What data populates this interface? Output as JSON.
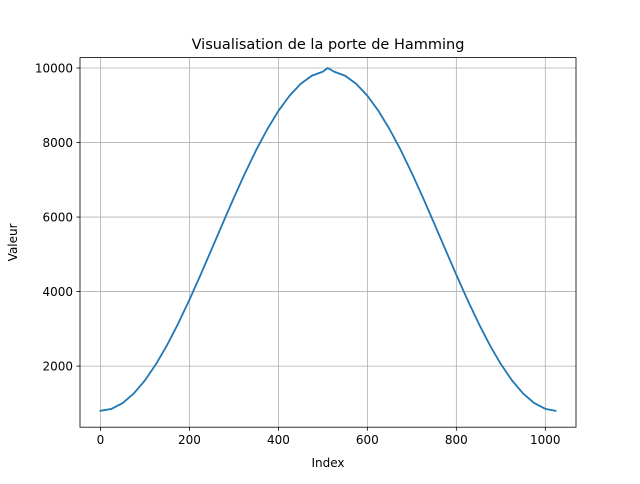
{
  "chart_data": {
    "type": "line",
    "title": "Visualisation de la porte de Hamming",
    "xlabel": "Index",
    "ylabel": "Valeur",
    "xlim": [
      -46,
      1069
    ],
    "ylim": [
      360,
      10280
    ],
    "xticks": [
      0,
      200,
      400,
      600,
      800,
      1000
    ],
    "xtick_labels": [
      "0",
      "200",
      "400",
      "600",
      "800",
      "1000"
    ],
    "yticks": [
      2000,
      4000,
      6000,
      8000,
      10000
    ],
    "ytick_labels": [
      "2000",
      "4000",
      "6000",
      "8000",
      "10000"
    ],
    "grid": true,
    "legend": "none",
    "series": [
      {
        "color": "#1f77b4",
        "x": [
          0,
          25,
          50,
          75,
          100,
          125,
          150,
          175,
          200,
          225,
          250,
          275,
          300,
          325,
          350,
          375,
          400,
          425,
          450,
          475,
          500,
          511,
          525,
          550,
          575,
          600,
          625,
          650,
          675,
          700,
          725,
          750,
          775,
          800,
          825,
          850,
          875,
          900,
          925,
          950,
          975,
          1000,
          1023
        ],
        "y": [
          800,
          853,
          1009,
          1266,
          1617,
          2055,
          2569,
          3149,
          3780,
          4449,
          5139,
          5835,
          6521,
          7180,
          7797,
          8357,
          8848,
          9257,
          9574,
          9792,
          9904,
          10000,
          9904,
          9792,
          9574,
          9257,
          8848,
          8357,
          7797,
          7180,
          6521,
          5835,
          5139,
          4449,
          3780,
          3149,
          2569,
          2055,
          1617,
          1266,
          1009,
          853,
          800
        ]
      }
    ]
  }
}
